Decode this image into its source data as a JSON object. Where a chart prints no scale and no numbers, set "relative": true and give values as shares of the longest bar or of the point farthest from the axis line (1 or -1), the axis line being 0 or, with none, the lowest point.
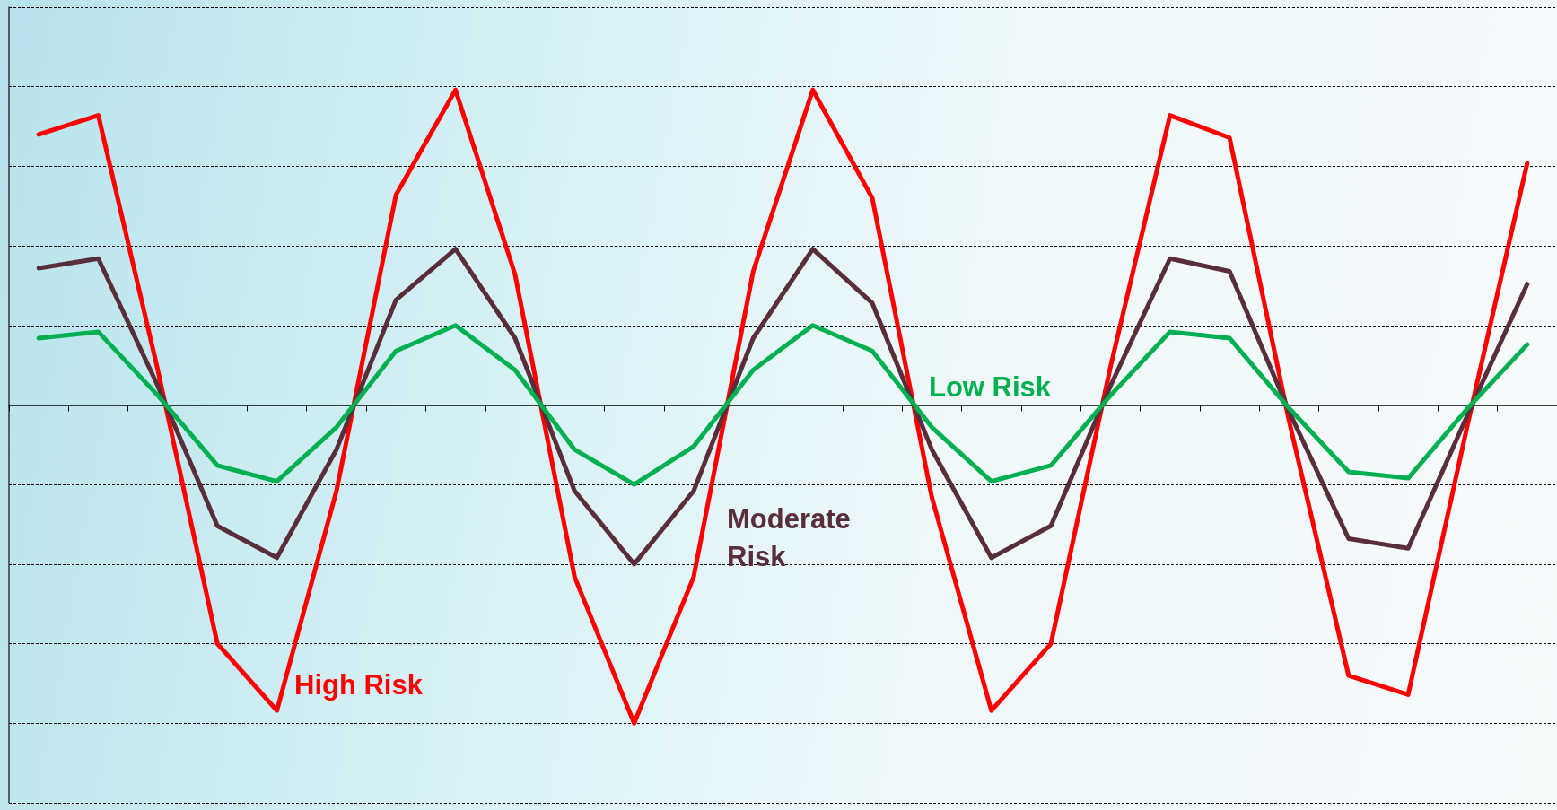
{
  "chart_data": {
    "type": "line",
    "relative": true,
    "grid": "y",
    "legend": false,
    "marker": "none",
    "line_style": "solid",
    "categories": [
      null,
      null,
      null,
      null,
      null,
      null,
      null,
      null,
      null,
      null,
      null,
      null,
      null,
      null,
      null,
      null,
      null,
      null,
      null,
      null,
      null,
      null,
      null,
      null,
      null,
      null
    ],
    "series": [
      {
        "name": "High Risk",
        "color": "#ff0000",
        "values": [
          0.85,
          0.91,
          0.11,
          -0.75,
          -0.96,
          -0.27,
          0.66,
          0.99,
          0.41,
          -0.54,
          -1.0,
          -0.54,
          0.42,
          0.99,
          0.65,
          -0.29,
          -0.96,
          -0.75,
          0.12,
          0.91,
          0.84,
          -0.05,
          -0.85,
          -0.91,
          -0.06,
          0.76
        ]
      },
      {
        "name": "Moderate Risk",
        "color": "#5a2d3a",
        "values": [
          0.43,
          0.46,
          0.06,
          -0.38,
          -0.48,
          -0.14,
          0.33,
          0.49,
          0.21,
          -0.27,
          -0.5,
          -0.27,
          0.21,
          0.49,
          0.32,
          -0.14,
          -0.48,
          -0.38,
          0.06,
          0.46,
          0.42,
          -0.02,
          -0.42,
          -0.45,
          -0.03,
          0.38
        ]
      },
      {
        "name": "Low Risk",
        "color": "#00b050",
        "values": [
          0.21,
          0.23,
          0.03,
          -0.19,
          -0.24,
          -0.07,
          0.17,
          0.25,
          0.11,
          -0.14,
          -0.25,
          -0.13,
          0.11,
          0.25,
          0.17,
          -0.07,
          -0.24,
          -0.19,
          0.03,
          0.23,
          0.21,
          -0.01,
          -0.21,
          -0.23,
          -0.01,
          0.19
        ]
      }
    ]
  }
}
